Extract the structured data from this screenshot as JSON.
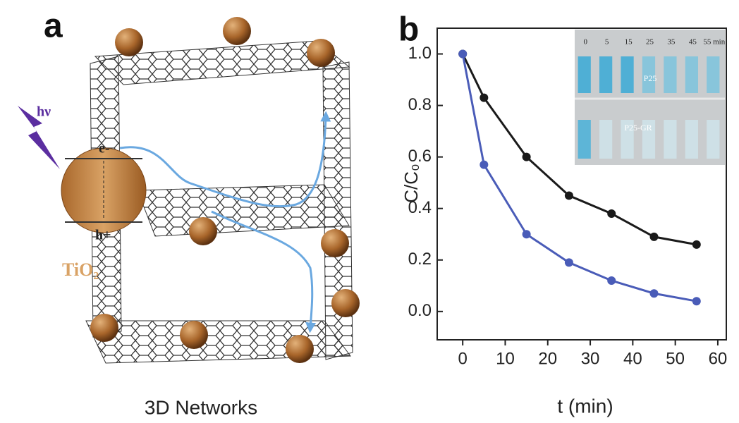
{
  "panel_a": {
    "label": "a",
    "light": "hν",
    "electron": "e-",
    "hole": "h+",
    "material": "TiO₂",
    "caption": "3D Networks"
  },
  "panel_b": {
    "label": "b"
  },
  "chart_data": {
    "type": "line",
    "xlabel": "t (min)",
    "ylabel": "C/C₀",
    "x": [
      0,
      5,
      15,
      25,
      35,
      45,
      55
    ],
    "series": [
      {
        "color": "#1a1a1a",
        "values": [
          1.0,
          0.83,
          0.6,
          0.45,
          0.38,
          0.29,
          0.26
        ]
      },
      {
        "color": "#4a5cb8",
        "values": [
          1.0,
          0.57,
          0.3,
          0.19,
          0.12,
          0.07,
          0.04
        ]
      }
    ],
    "xlim": [
      -6,
      62
    ],
    "ylim": [
      -0.11,
      1.1
    ],
    "xticks": [
      0,
      10,
      20,
      30,
      40,
      50,
      60
    ],
    "yticks": [
      {
        "value": 0,
        "label": "0.0"
      },
      0.2,
      0.4,
      0.6,
      0.8,
      {
        "value": 1,
        "label": "1.0"
      }
    ],
    "grid": false
  },
  "inset": {
    "times": [
      "0",
      "5",
      "15",
      "25",
      "35",
      "45",
      "55 min"
    ],
    "labels": [
      "P25",
      "P25-GR"
    ]
  }
}
